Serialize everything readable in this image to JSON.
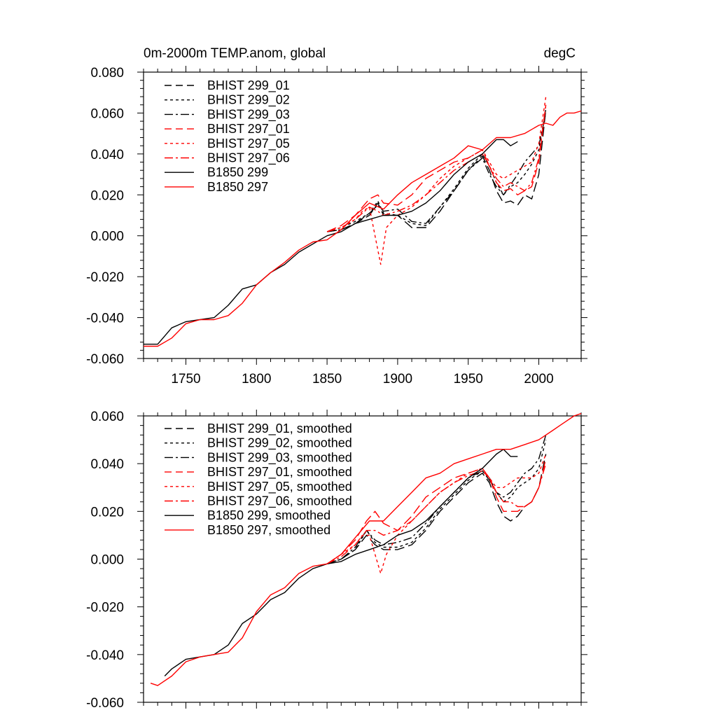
{
  "chart_data": [
    {
      "type": "line",
      "title": "0m-2000m TEMP.anom, global",
      "units": "degC",
      "xlim": [
        1720,
        2030
      ],
      "ylim": [
        -0.06,
        0.08
      ],
      "xticks": [
        {
          "v": 1750,
          "label": "1750"
        },
        {
          "v": 1800,
          "label": "1800"
        },
        {
          "v": 1850,
          "label": "1850"
        },
        {
          "v": 1900,
          "label": "1900"
        },
        {
          "v": 1950,
          "label": "1950"
        },
        {
          "v": 2000,
          "label": "2000"
        }
      ],
      "yticks": [
        {
          "v": -0.06,
          "label": "-0.060"
        },
        {
          "v": -0.04,
          "label": "-0.040"
        },
        {
          "v": -0.02,
          "label": "-0.020"
        },
        {
          "v": 0.0,
          "label": "0.000"
        },
        {
          "v": 0.02,
          "label": "0.020"
        },
        {
          "v": 0.04,
          "label": "0.040"
        },
        {
          "v": 0.06,
          "label": "0.060"
        },
        {
          "v": 0.08,
          "label": "0.080"
        }
      ],
      "legend_position": "top-left",
      "series": [
        {
          "name": "BHIST 299_01",
          "color": "#000000",
          "dash": "dash",
          "x": [
            1850,
            1860,
            1870,
            1880,
            1886,
            1890,
            1900,
            1910,
            1920,
            1930,
            1940,
            1950,
            1960,
            1965,
            1970,
            1975,
            1980,
            1985,
            1990,
            1995,
            2000,
            2005
          ],
          "y": [
            0.002,
            0.003,
            0.006,
            0.01,
            0.016,
            0.01,
            0.01,
            0.004,
            0.004,
            0.012,
            0.022,
            0.032,
            0.039,
            0.032,
            0.022,
            0.016,
            0.017,
            0.015,
            0.02,
            0.018,
            0.03,
            0.062
          ]
        },
        {
          "name": "BHIST 299_02",
          "color": "#000000",
          "dash": "dot",
          "x": [
            1850,
            1860,
            1870,
            1880,
            1886,
            1890,
            1900,
            1910,
            1920,
            1930,
            1940,
            1950,
            1960,
            1965,
            1970,
            1975,
            1980,
            1985,
            1990,
            1995,
            2000,
            2005
          ],
          "y": [
            0.002,
            0.004,
            0.007,
            0.011,
            0.017,
            0.011,
            0.01,
            0.006,
            0.005,
            0.014,
            0.023,
            0.033,
            0.04,
            0.034,
            0.026,
            0.02,
            0.024,
            0.026,
            0.03,
            0.035,
            0.042,
            0.062
          ]
        },
        {
          "name": "BHIST 299_03",
          "color": "#000000",
          "dash": "dashdot",
          "x": [
            1850,
            1860,
            1870,
            1880,
            1886,
            1890,
            1900,
            1910,
            1920,
            1930,
            1940,
            1950,
            1960,
            1965,
            1970,
            1975,
            1980,
            1985,
            1990,
            1995,
            2000,
            2005
          ],
          "y": [
            0.002,
            0.003,
            0.006,
            0.011,
            0.015,
            0.012,
            0.013,
            0.007,
            0.006,
            0.014,
            0.022,
            0.032,
            0.038,
            0.03,
            0.024,
            0.02,
            0.025,
            0.03,
            0.036,
            0.04,
            0.044,
            0.06
          ]
        },
        {
          "name": "BHIST 297_01",
          "color": "#ff0000",
          "dash": "dash",
          "x": [
            1850,
            1860,
            1870,
            1880,
            1886,
            1890,
            1900,
            1910,
            1920,
            1930,
            1940,
            1950,
            1960,
            1965,
            1970,
            1975,
            1980,
            1985,
            1990,
            1995,
            2000,
            2005
          ],
          "y": [
            0.002,
            0.005,
            0.01,
            0.018,
            0.02,
            0.016,
            0.015,
            0.02,
            0.028,
            0.032,
            0.036,
            0.038,
            0.042,
            0.034,
            0.026,
            0.022,
            0.023,
            0.02,
            0.022,
            0.024,
            0.036,
            0.064
          ]
        },
        {
          "name": "BHIST 297_05",
          "color": "#ff0000",
          "dash": "dot",
          "x": [
            1850,
            1860,
            1870,
            1875,
            1880,
            1884,
            1888,
            1892,
            1900,
            1910,
            1920,
            1930,
            1940,
            1950,
            1960,
            1965,
            1970,
            1975,
            1980,
            1985,
            1990,
            1995,
            2000,
            2005
          ],
          "y": [
            0.002,
            0.004,
            0.008,
            0.012,
            0.014,
            0.0,
            -0.014,
            0.004,
            0.01,
            0.014,
            0.02,
            0.028,
            0.034,
            0.038,
            0.042,
            0.036,
            0.03,
            0.028,
            0.03,
            0.032,
            0.034,
            0.036,
            0.045,
            0.068
          ]
        },
        {
          "name": "BHIST 297_06",
          "color": "#ff0000",
          "dash": "dashdot",
          "x": [
            1850,
            1860,
            1870,
            1880,
            1886,
            1890,
            1900,
            1910,
            1920,
            1930,
            1940,
            1950,
            1960,
            1965,
            1970,
            1975,
            1980,
            1985,
            1990,
            1995,
            2000,
            2005
          ],
          "y": [
            0.002,
            0.004,
            0.008,
            0.014,
            0.012,
            0.01,
            0.012,
            0.015,
            0.02,
            0.026,
            0.032,
            0.036,
            0.04,
            0.034,
            0.028,
            0.024,
            0.026,
            0.024,
            0.022,
            0.026,
            0.038,
            0.064
          ]
        },
        {
          "name": "B1850 299",
          "color": "#000000",
          "dash": "solid",
          "x": [
            1720,
            1730,
            1740,
            1750,
            1760,
            1770,
            1780,
            1790,
            1800,
            1810,
            1820,
            1830,
            1840,
            1850,
            1860,
            1870,
            1880,
            1890,
            1900,
            1910,
            1920,
            1930,
            1940,
            1950,
            1960,
            1970,
            1975,
            1980,
            1985
          ],
          "y": [
            -0.053,
            -0.053,
            -0.045,
            -0.042,
            -0.041,
            -0.04,
            -0.034,
            -0.026,
            -0.024,
            -0.018,
            -0.014,
            -0.008,
            -0.004,
            0.0,
            0.002,
            0.006,
            0.008,
            0.01,
            0.01,
            0.012,
            0.016,
            0.022,
            0.03,
            0.036,
            0.04,
            0.047,
            0.047,
            0.044,
            0.046
          ]
        },
        {
          "name": "B1850 297",
          "color": "#ff0000",
          "dash": "solid",
          "x": [
            1720,
            1730,
            1740,
            1750,
            1760,
            1770,
            1780,
            1790,
            1800,
            1810,
            1820,
            1830,
            1840,
            1850,
            1860,
            1870,
            1880,
            1890,
            1900,
            1910,
            1920,
            1930,
            1940,
            1950,
            1960,
            1970,
            1980,
            1990,
            2000,
            2005,
            2010,
            2015,
            2020,
            2025,
            2030
          ],
          "y": [
            -0.054,
            -0.054,
            -0.05,
            -0.043,
            -0.041,
            -0.041,
            -0.039,
            -0.033,
            -0.024,
            -0.018,
            -0.013,
            -0.007,
            -0.003,
            -0.002,
            0.003,
            0.01,
            0.016,
            0.013,
            0.02,
            0.026,
            0.03,
            0.034,
            0.038,
            0.044,
            0.042,
            0.048,
            0.048,
            0.05,
            0.054,
            0.055,
            0.054,
            0.058,
            0.06,
            0.06,
            0.061
          ]
        }
      ]
    },
    {
      "type": "line",
      "xlim": [
        1720,
        2030
      ],
      "ylim": [
        -0.06,
        0.06
      ],
      "xticks": [
        {
          "v": 1750,
          "label": ""
        },
        {
          "v": 1800,
          "label": ""
        },
        {
          "v": 1850,
          "label": ""
        },
        {
          "v": 1900,
          "label": ""
        },
        {
          "v": 1950,
          "label": ""
        },
        {
          "v": 2000,
          "label": ""
        }
      ],
      "yticks": [
        {
          "v": -0.06,
          "label": "-0.060"
        },
        {
          "v": -0.04,
          "label": "-0.040"
        },
        {
          "v": -0.02,
          "label": "-0.020"
        },
        {
          "v": 0.0,
          "label": "0.000"
        },
        {
          "v": 0.02,
          "label": "0.020"
        },
        {
          "v": 0.04,
          "label": "0.040"
        },
        {
          "v": 0.06,
          "label": "0.060"
        }
      ],
      "legend_position": "top-left",
      "series": [
        {
          "name": "BHIST 299_01, smoothed",
          "color": "#000000",
          "dash": "dash",
          "x": [
            1850,
            1860,
            1870,
            1878,
            1884,
            1890,
            1900,
            1910,
            1920,
            1930,
            1940,
            1950,
            1960,
            1965,
            1970,
            1975,
            1980,
            1985,
            1990,
            1995,
            2000,
            2005
          ],
          "y": [
            -0.002,
            0.0,
            0.004,
            0.01,
            0.006,
            0.004,
            0.004,
            0.006,
            0.012,
            0.02,
            0.026,
            0.032,
            0.036,
            0.032,
            0.024,
            0.018,
            0.016,
            0.018,
            0.022,
            0.024,
            0.03,
            0.044
          ]
        },
        {
          "name": "BHIST 299_02, smoothed",
          "color": "#000000",
          "dash": "dot",
          "x": [
            1850,
            1860,
            1870,
            1878,
            1884,
            1890,
            1900,
            1910,
            1920,
            1930,
            1940,
            1950,
            1960,
            1965,
            1970,
            1975,
            1980,
            1985,
            1990,
            1995,
            2000,
            2005
          ],
          "y": [
            -0.002,
            0.0,
            0.004,
            0.012,
            0.007,
            0.005,
            0.005,
            0.007,
            0.013,
            0.021,
            0.027,
            0.033,
            0.037,
            0.034,
            0.028,
            0.024,
            0.026,
            0.03,
            0.032,
            0.034,
            0.038,
            0.05
          ]
        },
        {
          "name": "BHIST 299_03, smoothed",
          "color": "#000000",
          "dash": "dashdot",
          "x": [
            1850,
            1860,
            1870,
            1878,
            1884,
            1890,
            1900,
            1910,
            1920,
            1930,
            1940,
            1950,
            1960,
            1965,
            1970,
            1975,
            1980,
            1985,
            1990,
            1995,
            2000,
            2005
          ],
          "y": [
            -0.002,
            0.0,
            0.005,
            0.012,
            0.008,
            0.006,
            0.007,
            0.009,
            0.015,
            0.022,
            0.028,
            0.034,
            0.037,
            0.033,
            0.028,
            0.026,
            0.028,
            0.032,
            0.036,
            0.038,
            0.042,
            0.052
          ]
        },
        {
          "name": "BHIST 297_01, smoothed",
          "color": "#ff0000",
          "dash": "dash",
          "x": [
            1850,
            1860,
            1870,
            1878,
            1884,
            1890,
            1900,
            1910,
            1920,
            1930,
            1940,
            1950,
            1960,
            1965,
            1970,
            1975,
            1980,
            1985,
            1990,
            1995,
            2000,
            2005
          ],
          "y": [
            -0.002,
            0.002,
            0.008,
            0.016,
            0.02,
            0.015,
            0.012,
            0.018,
            0.026,
            0.03,
            0.034,
            0.036,
            0.038,
            0.034,
            0.026,
            0.02,
            0.02,
            0.02,
            0.022,
            0.024,
            0.03,
            0.042
          ]
        },
        {
          "name": "BHIST 297_05, smoothed",
          "color": "#ff0000",
          "dash": "dot",
          "x": [
            1850,
            1860,
            1870,
            1875,
            1880,
            1884,
            1888,
            1892,
            1900,
            1910,
            1920,
            1930,
            1940,
            1950,
            1960,
            1965,
            1970,
            1975,
            1980,
            1985,
            1990,
            1995,
            2000,
            2005
          ],
          "y": [
            -0.002,
            0.002,
            0.006,
            0.01,
            0.01,
            0.002,
            -0.006,
            0.002,
            0.01,
            0.016,
            0.022,
            0.028,
            0.032,
            0.036,
            0.038,
            0.034,
            0.03,
            0.03,
            0.032,
            0.034,
            0.034,
            0.034,
            0.036,
            0.044
          ]
        },
        {
          "name": "BHIST 297_06, smoothed",
          "color": "#ff0000",
          "dash": "dashdot",
          "x": [
            1850,
            1860,
            1870,
            1878,
            1884,
            1890,
            1900,
            1910,
            1920,
            1930,
            1940,
            1950,
            1960,
            1965,
            1970,
            1975,
            1980,
            1985,
            1990,
            1995,
            2000,
            2005
          ],
          "y": [
            -0.002,
            0.001,
            0.006,
            0.012,
            0.012,
            0.01,
            0.012,
            0.016,
            0.022,
            0.028,
            0.032,
            0.035,
            0.037,
            0.034,
            0.028,
            0.024,
            0.024,
            0.022,
            0.022,
            0.024,
            0.03,
            0.04
          ]
        },
        {
          "name": "B1850 299, smoothed",
          "color": "#000000",
          "dash": "solid",
          "x": [
            1735,
            1740,
            1750,
            1760,
            1770,
            1780,
            1790,
            1800,
            1810,
            1820,
            1830,
            1840,
            1850,
            1860,
            1870,
            1880,
            1890,
            1900,
            1910,
            1920,
            1930,
            1940,
            1950,
            1960,
            1970,
            1975,
            1980,
            1985
          ],
          "y": [
            -0.049,
            -0.046,
            -0.042,
            -0.041,
            -0.04,
            -0.036,
            -0.027,
            -0.023,
            -0.017,
            -0.014,
            -0.008,
            -0.004,
            -0.002,
            -0.001,
            0.002,
            0.004,
            0.006,
            0.01,
            0.012,
            0.016,
            0.022,
            0.028,
            0.034,
            0.038,
            0.044,
            0.046,
            0.043,
            0.043
          ]
        },
        {
          "name": "B1850 297, smoothed",
          "color": "#ff0000",
          "dash": "solid",
          "x": [
            1725,
            1730,
            1740,
            1750,
            1760,
            1770,
            1780,
            1790,
            1800,
            1810,
            1820,
            1830,
            1840,
            1850,
            1860,
            1870,
            1880,
            1890,
            1900,
            1910,
            1920,
            1930,
            1940,
            1950,
            1960,
            1970,
            1980,
            1990,
            2000,
            2010,
            2015,
            2020,
            2025,
            2030
          ],
          "y": [
            -0.052,
            -0.053,
            -0.049,
            -0.043,
            -0.041,
            -0.04,
            -0.039,
            -0.033,
            -0.022,
            -0.015,
            -0.012,
            -0.006,
            -0.003,
            -0.002,
            0.002,
            0.009,
            0.016,
            0.016,
            0.022,
            0.028,
            0.034,
            0.036,
            0.04,
            0.042,
            0.044,
            0.046,
            0.046,
            0.048,
            0.05,
            0.054,
            0.056,
            0.058,
            0.06,
            0.061
          ]
        }
      ]
    }
  ]
}
